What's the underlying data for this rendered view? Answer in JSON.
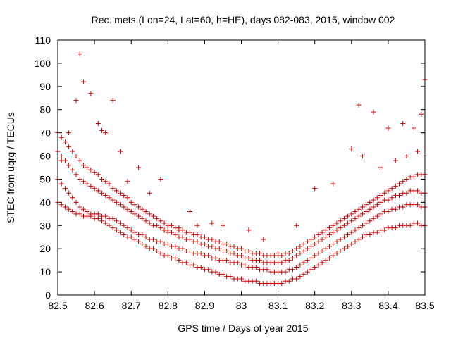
{
  "chart_data": {
    "type": "scatter",
    "title": "Rec. mets (Lon=24, Lat=60, h=HE), days 082-083, 2015, window 002",
    "xlabel": "GPS time / Days of year 2015",
    "ylabel": "STEC from uqrg / TECUs",
    "xlim": [
      82.5,
      83.5
    ],
    "ylim": [
      0,
      110
    ],
    "xticks": [
      "82.5",
      "82.6",
      "82.7",
      "82.8",
      "82.9",
      "83",
      "83.1",
      "83.2",
      "83.3",
      "83.4",
      "83.5"
    ],
    "yticks": [
      "0",
      "10",
      "20",
      "30",
      "40",
      "50",
      "60",
      "70",
      "80",
      "90",
      "100",
      "110"
    ],
    "grid": false,
    "marker": "plus",
    "color": "#cc0000",
    "series": [
      {
        "x": [
          82.5,
          82.51,
          82.52,
          82.53,
          82.54,
          82.55,
          82.56,
          82.57,
          82.58,
          82.59,
          82.6,
          82.61,
          82.62,
          82.63,
          82.64,
          82.65,
          82.66,
          82.67,
          82.68,
          82.69,
          82.7,
          82.71,
          82.72,
          82.73,
          82.74,
          82.75,
          82.76,
          82.77,
          82.78,
          82.79,
          82.8,
          82.81,
          82.82,
          82.83,
          82.84,
          82.85,
          82.86,
          82.87,
          82.88,
          82.89,
          82.9,
          82.91,
          82.92,
          82.93,
          82.94,
          82.95,
          82.96,
          82.97,
          82.98,
          82.99,
          83.0,
          83.01,
          83.02,
          83.03,
          83.04,
          83.05,
          83.06,
          83.07,
          83.08,
          83.09,
          83.1,
          83.11,
          83.12,
          83.13,
          83.14,
          83.15,
          83.16,
          83.17,
          83.18,
          83.19,
          83.2,
          83.21,
          83.22,
          83.23,
          83.24,
          83.25,
          83.26,
          83.27,
          83.28,
          83.29,
          83.3,
          83.31,
          83.32,
          83.33,
          83.34,
          83.35,
          83.36,
          83.37,
          83.38,
          83.39,
          83.4,
          83.41,
          83.42,
          83.43,
          83.44,
          83.45,
          83.46,
          83.47,
          83.48,
          83.49,
          83.5
        ],
        "y": [
          40,
          39,
          38,
          37,
          36,
          35,
          35,
          34,
          34,
          34,
          33,
          33,
          32,
          31,
          30,
          29,
          28,
          27,
          26,
          25,
          25,
          24,
          23,
          22,
          21,
          20,
          20,
          19,
          18,
          17,
          17,
          16,
          16,
          15,
          14,
          14,
          13,
          13,
          12,
          12,
          11,
          11,
          10,
          10,
          9,
          9,
          8,
          8,
          7,
          7,
          7,
          6,
          6,
          6,
          6,
          5,
          5,
          5,
          5,
          5,
          5,
          5,
          6,
          6,
          7,
          7,
          8,
          9,
          10,
          11,
          12,
          13,
          14,
          15,
          16,
          17,
          18,
          19,
          20,
          21,
          22,
          23,
          24,
          25,
          26,
          26,
          27,
          27,
          28,
          28,
          29,
          29,
          29,
          30,
          30,
          30,
          30,
          31,
          31,
          30,
          30
        ]
      },
      {
        "x": [
          82.5,
          82.51,
          82.52,
          82.53,
          82.54,
          82.55,
          82.56,
          82.57,
          82.58,
          82.59,
          82.6,
          82.61,
          82.62,
          82.63,
          82.64,
          82.65,
          82.66,
          82.67,
          82.68,
          82.69,
          82.7,
          82.71,
          82.72,
          82.73,
          82.74,
          82.75,
          82.76,
          82.77,
          82.78,
          82.79,
          82.8,
          82.81,
          82.82,
          82.83,
          82.84,
          82.85,
          82.86,
          82.87,
          82.88,
          82.89,
          82.9,
          82.91,
          82.92,
          82.93,
          82.94,
          82.95,
          82.96,
          82.97,
          82.98,
          82.99,
          83.0,
          83.01,
          83.02,
          83.03,
          83.04,
          83.05,
          83.06,
          83.07,
          83.08,
          83.09,
          83.1,
          83.11,
          83.12,
          83.13,
          83.14,
          83.15,
          83.16,
          83.17,
          83.18,
          83.19,
          83.2,
          83.21,
          83.22,
          83.23,
          83.24,
          83.25,
          83.26,
          83.27,
          83.28,
          83.29,
          83.3,
          83.31,
          83.32,
          83.33,
          83.34,
          83.35,
          83.36,
          83.37,
          83.38,
          83.39,
          83.4,
          83.41,
          83.42,
          83.43,
          83.44,
          83.45,
          83.46,
          83.47,
          83.48,
          83.49,
          83.5
        ],
        "y": [
          50,
          48,
          46,
          44,
          42,
          40,
          38,
          37,
          36,
          35,
          35,
          35,
          34,
          34,
          33,
          33,
          32,
          31,
          30,
          29,
          28,
          27,
          26,
          26,
          25,
          24,
          24,
          23,
          23,
          22,
          22,
          21,
          21,
          20,
          20,
          19,
          19,
          18,
          18,
          18,
          17,
          17,
          16,
          16,
          15,
          15,
          15,
          14,
          14,
          14,
          13,
          13,
          12,
          12,
          12,
          11,
          11,
          11,
          10,
          10,
          10,
          10,
          10,
          11,
          11,
          12,
          13,
          14,
          15,
          16,
          17,
          18,
          19,
          20,
          21,
          22,
          23,
          24,
          25,
          26,
          27,
          28,
          29,
          30,
          31,
          32,
          33,
          34,
          35,
          36,
          36,
          37,
          37,
          38,
          38,
          39,
          39,
          39,
          39,
          38,
          38
        ]
      },
      {
        "x": [
          82.5,
          82.51,
          82.52,
          82.53,
          82.54,
          82.55,
          82.56,
          82.57,
          82.58,
          82.59,
          82.6,
          82.61,
          82.62,
          82.63,
          82.64,
          82.65,
          82.66,
          82.67,
          82.68,
          82.69,
          82.7,
          82.71,
          82.72,
          82.73,
          82.74,
          82.75,
          82.76,
          82.77,
          82.78,
          82.79,
          82.8,
          82.81,
          82.82,
          82.83,
          82.84,
          82.85,
          82.86,
          82.87,
          82.88,
          82.89,
          82.9,
          82.91,
          82.92,
          82.93,
          82.94,
          82.95,
          82.96,
          82.97,
          82.98,
          82.99,
          83.0,
          83.01,
          83.02,
          83.03,
          83.04,
          83.05,
          83.06,
          83.07,
          83.08,
          83.09,
          83.1,
          83.11,
          83.12,
          83.13,
          83.14,
          83.15,
          83.16,
          83.17,
          83.18,
          83.19,
          83.2,
          83.21,
          83.22,
          83.23,
          83.24,
          83.25,
          83.26,
          83.27,
          83.28,
          83.29,
          83.3,
          83.31,
          83.32,
          83.33,
          83.34,
          83.35,
          83.36,
          83.37,
          83.38,
          83.39,
          83.4,
          83.41,
          83.42,
          83.43,
          83.44,
          83.45,
          83.46,
          83.47,
          83.48,
          83.49,
          83.5
        ],
        "y": [
          62,
          60,
          58,
          56,
          54,
          52,
          50,
          49,
          48,
          47,
          46,
          45,
          44,
          43,
          42,
          41,
          40,
          39,
          38,
          37,
          36,
          35,
          34,
          33,
          32,
          31,
          30,
          30,
          29,
          28,
          27,
          27,
          26,
          25,
          25,
          24,
          24,
          23,
          23,
          22,
          22,
          21,
          21,
          20,
          20,
          19,
          19,
          18,
          18,
          17,
          17,
          16,
          16,
          15,
          15,
          15,
          14,
          14,
          14,
          14,
          14,
          14,
          15,
          15,
          16,
          17,
          18,
          19,
          20,
          21,
          22,
          23,
          24,
          25,
          26,
          27,
          28,
          29,
          30,
          31,
          32,
          33,
          34,
          35,
          36,
          37,
          38,
          39,
          40,
          41,
          41,
          42,
          43,
          43,
          44,
          44,
          45,
          45,
          45,
          44,
          44
        ]
      },
      {
        "x": [
          82.5,
          82.51,
          82.52,
          82.53,
          82.54,
          82.55,
          82.56,
          82.57,
          82.58,
          82.59,
          82.6,
          82.61,
          82.62,
          82.63,
          82.64,
          82.65,
          82.66,
          82.67,
          82.68,
          82.69,
          82.7,
          82.71,
          82.72,
          82.73,
          82.74,
          82.75,
          82.76,
          82.77,
          82.78,
          82.79,
          82.8,
          82.81,
          82.82,
          82.83,
          82.84,
          82.85,
          82.86,
          82.87,
          82.88,
          82.89,
          82.9,
          82.91,
          82.92,
          82.93,
          82.94,
          82.95,
          82.96,
          82.97,
          82.98,
          82.99,
          83.0,
          83.01,
          83.02,
          83.03,
          83.04,
          83.05,
          83.06,
          83.07,
          83.08,
          83.09,
          83.1,
          83.11,
          83.12,
          83.13,
          83.14,
          83.15,
          83.16,
          83.17,
          83.18,
          83.19,
          83.2,
          83.21,
          83.22,
          83.23,
          83.24,
          83.25,
          83.26,
          83.27,
          83.28,
          83.29,
          83.3,
          83.31,
          83.32,
          83.33,
          83.34,
          83.35,
          83.36,
          83.37,
          83.38,
          83.39,
          83.4,
          83.41,
          83.42,
          83.43,
          83.44,
          83.45,
          83.46,
          83.47,
          83.48,
          83.49,
          83.5
        ],
        "y": [
          70,
          68,
          66,
          64,
          62,
          60,
          58,
          56,
          55,
          54,
          53,
          52,
          50,
          49,
          48,
          46,
          45,
          44,
          43,
          42,
          40,
          39,
          38,
          37,
          36,
          35,
          34,
          33,
          32,
          31,
          30,
          30,
          29,
          28,
          28,
          27,
          27,
          26,
          26,
          25,
          25,
          24,
          24,
          23,
          23,
          22,
          22,
          21,
          21,
          20,
          20,
          19,
          19,
          18,
          18,
          18,
          17,
          17,
          17,
          17,
          17,
          17,
          18,
          18,
          19,
          20,
          21,
          22,
          23,
          24,
          25,
          26,
          27,
          28,
          29,
          30,
          31,
          32,
          33,
          34,
          35,
          36,
          37,
          38,
          39,
          40,
          41,
          42,
          43,
          44,
          45,
          46,
          47,
          48,
          49,
          50,
          51,
          51,
          52,
          52,
          52
        ]
      },
      {
        "x": [
          82.51,
          82.53,
          82.55,
          82.56,
          82.57,
          82.59,
          82.61,
          82.62,
          82.63,
          82.65,
          82.67,
          82.69,
          82.72,
          82.75,
          82.78,
          82.8,
          82.83,
          82.86,
          82.88,
          82.92,
          82.95,
          83.02,
          83.06,
          83.1,
          83.15,
          83.2,
          83.25,
          83.3,
          83.32,
          83.33,
          83.36,
          83.38,
          83.4,
          83.42,
          83.44,
          83.45,
          83.47,
          83.48,
          83.49,
          83.5
        ],
        "y": [
          58,
          70,
          84,
          104,
          92,
          87,
          74,
          71,
          70,
          84,
          62,
          49,
          55,
          44,
          50,
          28,
          29,
          36,
          30,
          31,
          30,
          28,
          24,
          18,
          30,
          46,
          48,
          63,
          82,
          60,
          79,
          55,
          72,
          58,
          74,
          60,
          72,
          62,
          78,
          93
        ]
      }
    ]
  }
}
